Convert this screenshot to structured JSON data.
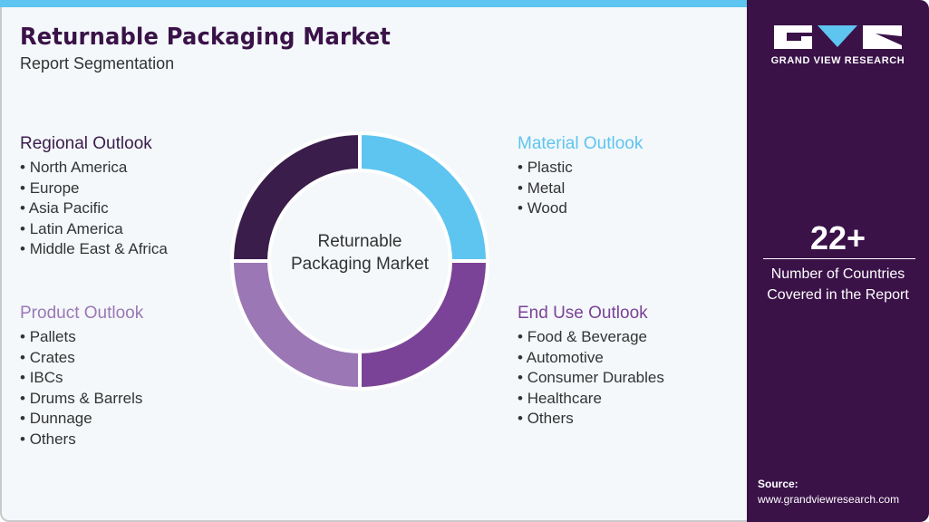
{
  "header": {
    "title": "Returnable Packaging Market",
    "subtitle": "Report Segmentation"
  },
  "center_label": "Returnable Packaging Market",
  "colors": {
    "regional": "#3a1d4a",
    "material": "#5ec4f0",
    "product": "#9b78b5",
    "end_use": "#7b4397",
    "panel": "#3a1248"
  },
  "segments": {
    "regional": {
      "title": "Regional Outlook",
      "items": [
        "North America",
        "Europe",
        "Asia Pacific",
        "Latin America",
        "Middle East & Africa"
      ]
    },
    "material": {
      "title": "Material Outlook",
      "items": [
        "Plastic",
        "Metal",
        "Wood"
      ]
    },
    "product": {
      "title": "Product Outlook",
      "items": [
        "Pallets",
        "Crates",
        "IBCs",
        "Drums & Barrels",
        "Dunnage",
        "Others"
      ]
    },
    "end_use": {
      "title": "End Use Outlook",
      "items": [
        "Food & Beverage",
        "Automotive",
        "Consumer Durables",
        "Healthcare",
        "Others"
      ]
    }
  },
  "sidebar": {
    "brand": "GRAND VIEW RESEARCH",
    "stat_value": "22+",
    "stat_label_1": "Number of Countries",
    "stat_label_2": "Covered in the Report",
    "source_label": "Source:",
    "source_url": "www.grandviewresearch.com"
  }
}
